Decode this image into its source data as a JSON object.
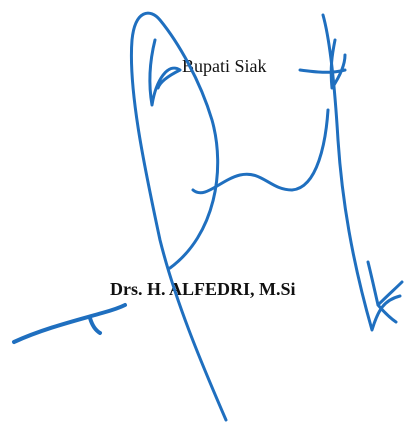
{
  "signature_block": {
    "title": "Bupati Siak",
    "name": "Drs. H. ALFEDRI, M.Si"
  },
  "ink": {
    "signature_color": "#1f6fbf",
    "text_color": "#111111"
  },
  "icons": {
    "signature": "handwritten-signature-icon"
  }
}
